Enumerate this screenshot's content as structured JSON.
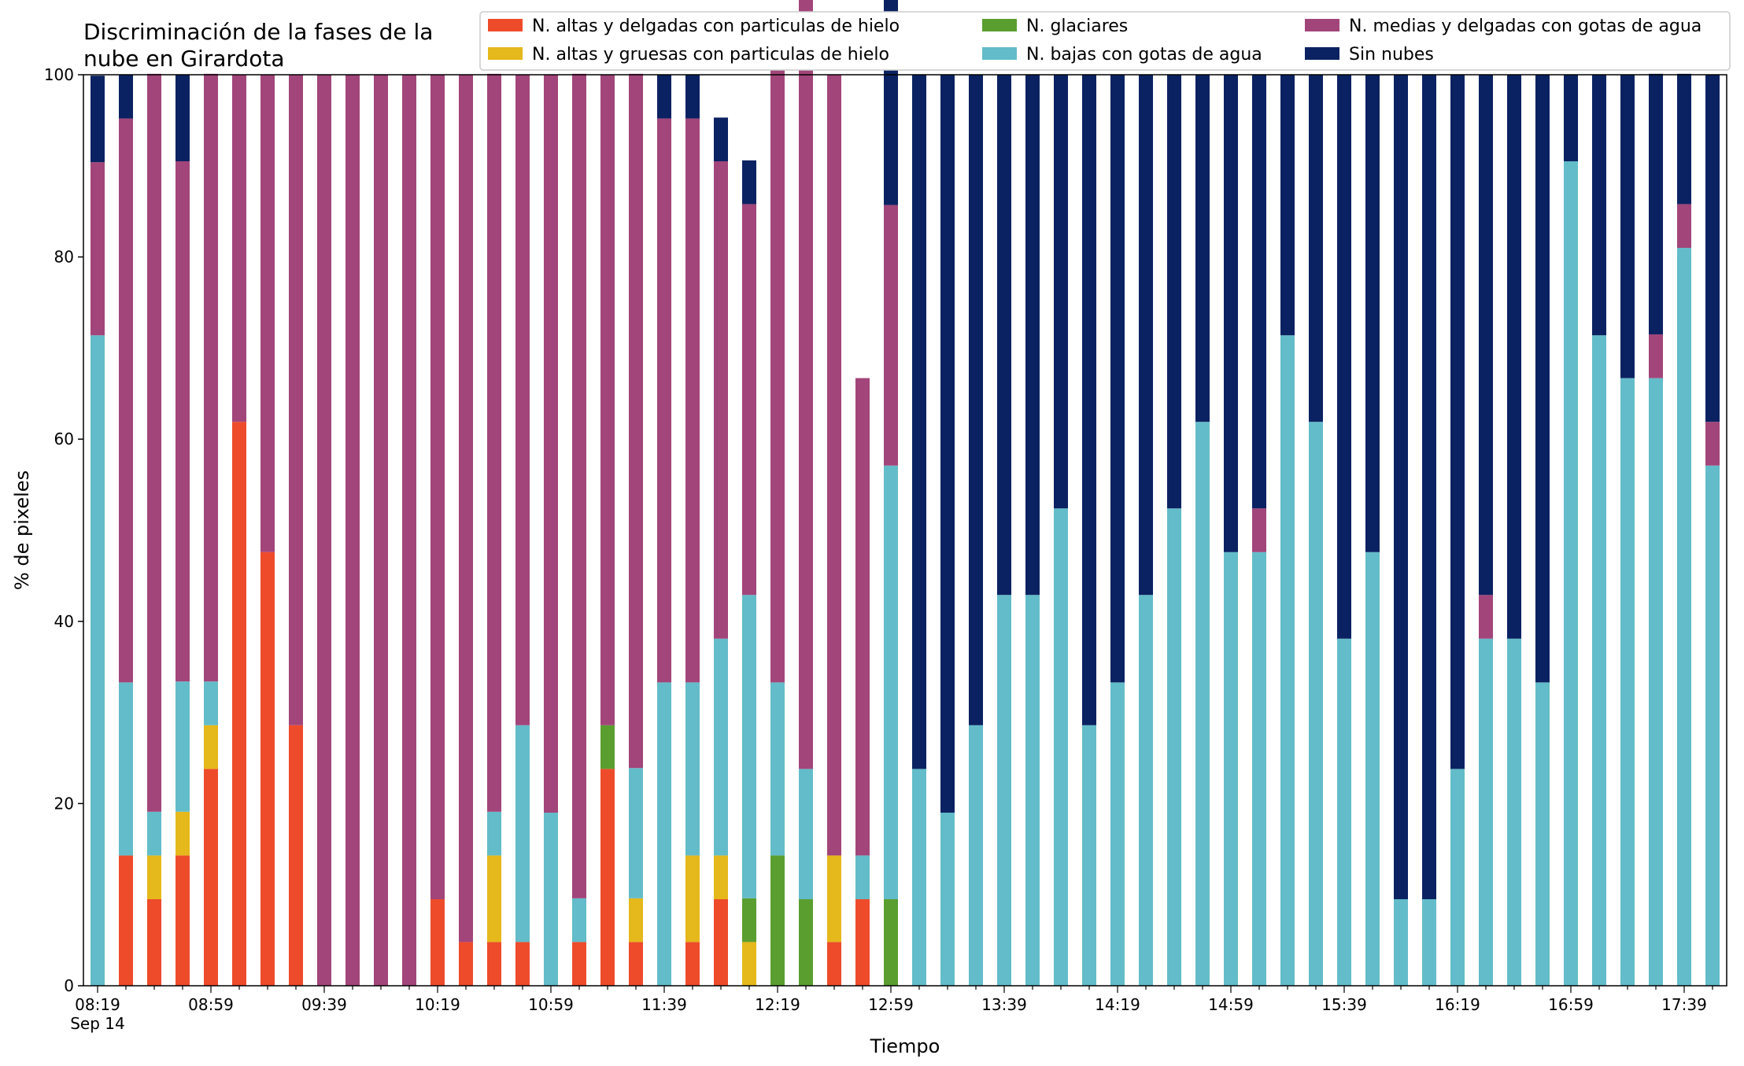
{
  "chart_data": {
    "type": "bar",
    "stacked": true,
    "title_lines": [
      "Discriminación de la fases de la",
      "nube en Girardota"
    ],
    "xlabel": "Tiempo",
    "ylabel": "% de pixeles",
    "ylim": [
      0,
      100
    ],
    "yticks": [
      0,
      20,
      40,
      60,
      80,
      100
    ],
    "xtick_labels": [
      "08:19",
      "08:59",
      "09:39",
      "10:19",
      "10:59",
      "11:39",
      "12:19",
      "12:59",
      "13:39",
      "14:19",
      "14:59",
      "15:39",
      "16:19",
      "16:59",
      "17:39"
    ],
    "xtick_sublabel": "Sep 14",
    "grid": false,
    "legend_position": "top-right",
    "categories": [
      "08:19",
      "08:29",
      "08:39",
      "08:49",
      "08:59",
      "09:09",
      "09:19",
      "09:29",
      "09:39",
      "09:49",
      "09:59",
      "10:09",
      "10:19",
      "10:29",
      "10:39",
      "10:49",
      "10:59",
      "11:09",
      "11:19",
      "11:29",
      "11:39",
      "11:49",
      "11:59",
      "12:09",
      "12:19",
      "12:29",
      "12:39",
      "12:49",
      "12:59",
      "13:09",
      "13:19",
      "13:29",
      "13:39",
      "13:49",
      "13:59",
      "14:09",
      "14:19",
      "14:29",
      "14:39",
      "14:49",
      "14:59",
      "15:09",
      "15:19",
      "15:29",
      "15:39",
      "15:49",
      "15:59",
      "16:09",
      "16:19",
      "16:29",
      "16:39",
      "16:49",
      "16:59",
      "17:09",
      "17:19",
      "17:29",
      "17:39",
      "17:49"
    ],
    "series": [
      {
        "name": "N. altas y delgadas con particulas de hielo",
        "color": "#ee4b2b",
        "values": [
          0,
          14.3,
          9.5,
          14.3,
          23.8,
          61.9,
          47.6,
          28.6,
          0,
          0,
          0,
          0,
          9.5,
          4.8,
          4.8,
          4.8,
          0,
          4.8,
          23.8,
          4.8,
          0,
          4.8,
          9.5,
          0,
          0,
          0,
          4.8,
          9.5,
          0,
          0,
          0,
          0,
          0,
          0,
          0,
          0,
          0,
          0,
          0,
          0,
          0,
          0,
          0,
          0,
          0,
          0,
          0,
          0,
          0,
          0,
          0,
          0,
          0,
          0,
          0,
          0,
          0,
          0
        ]
      },
      {
        "name": "N. altas y gruesas con particulas de hielo",
        "color": "#e5b81b",
        "values": [
          0,
          0,
          4.8,
          4.8,
          4.8,
          0,
          0,
          0,
          0,
          0,
          0,
          0,
          0,
          0,
          9.5,
          0,
          0,
          0,
          0,
          4.8,
          0,
          9.5,
          4.8,
          4.8,
          0,
          0,
          9.5,
          0,
          0,
          0,
          0,
          0,
          0,
          0,
          0,
          0,
          0,
          0,
          0,
          0,
          0,
          0,
          0,
          0,
          0,
          0,
          0,
          0,
          0,
          0,
          0,
          0,
          0,
          0,
          0,
          0,
          0,
          0
        ]
      },
      {
        "name": "N. glaciares",
        "color": "#5a9e2f",
        "values": [
          0,
          0,
          0,
          0,
          0,
          0,
          0,
          0,
          0,
          0,
          0,
          0,
          0,
          0,
          0,
          0,
          0,
          0,
          4.8,
          0,
          0,
          0,
          0,
          4.8,
          14.3,
          9.5,
          0,
          0,
          9.5,
          0,
          0,
          0,
          0,
          0,
          0,
          0,
          0,
          0,
          0,
          0,
          0,
          0,
          0,
          0,
          0,
          0,
          0,
          0,
          0,
          0,
          0,
          0,
          0,
          0,
          0,
          0,
          0,
          0
        ]
      },
      {
        "name": "N. bajas con gotas de agua",
        "color": "#63bcc9",
        "values": [
          71.4,
          19,
          4.8,
          14.3,
          4.8,
          0,
          0,
          0,
          0,
          0,
          0,
          0,
          0,
          0,
          4.8,
          23.8,
          19,
          4.8,
          0,
          14.3,
          33.3,
          19,
          23.8,
          33.3,
          19,
          14.3,
          0,
          4.8,
          47.6,
          23.8,
          19,
          28.6,
          42.9,
          42.9,
          52.4,
          28.6,
          33.3,
          42.9,
          52.4,
          61.9,
          47.6,
          47.6,
          71.4,
          61.9,
          38.1,
          47.6,
          9.5,
          9.5,
          23.8,
          38.1,
          38.1,
          33.3,
          90.5,
          71.4,
          66.7,
          66.7,
          81,
          57.1
        ]
      },
      {
        "name": "N. medias y delgadas con gotas de agua",
        "color": "#a2457a",
        "values": [
          19,
          61.9,
          81,
          57.1,
          66.7,
          38.1,
          52.4,
          71.4,
          100,
          100,
          100,
          100,
          90.5,
          95.2,
          81,
          71.4,
          81,
          90.5,
          71.4,
          76.2,
          61.9,
          61.9,
          52.4,
          42.9,
          71.4,
          85.7,
          85.7,
          52.4,
          28.6,
          0,
          0,
          0,
          0,
          0,
          0,
          0,
          0,
          0,
          0,
          0,
          0,
          4.8,
          0,
          0,
          0,
          0,
          0,
          0,
          0,
          4.8,
          0,
          0,
          0,
          0,
          0,
          4.8,
          4.8,
          4.8
        ]
      },
      {
        "name": "Sin nubes",
        "color": "#0b2262",
        "values": [
          9.5,
          4.8,
          0,
          9.5,
          0,
          0,
          0,
          0,
          0,
          0,
          0,
          0,
          0,
          0,
          0,
          0,
          0,
          0,
          0,
          0,
          4.8,
          4.8,
          4.8,
          4.8,
          0,
          0,
          0,
          0,
          23.8,
          76.2,
          81,
          71.4,
          57.1,
          57.1,
          47.6,
          71.4,
          66.7,
          57.1,
          47.6,
          38.1,
          52.4,
          47.6,
          28.6,
          38.1,
          61.9,
          52.4,
          90.5,
          90.5,
          76.2,
          57.1,
          61.9,
          66.7,
          9.5,
          28.6,
          33.3,
          28.6,
          14.3,
          38.1
        ]
      }
    ]
  }
}
